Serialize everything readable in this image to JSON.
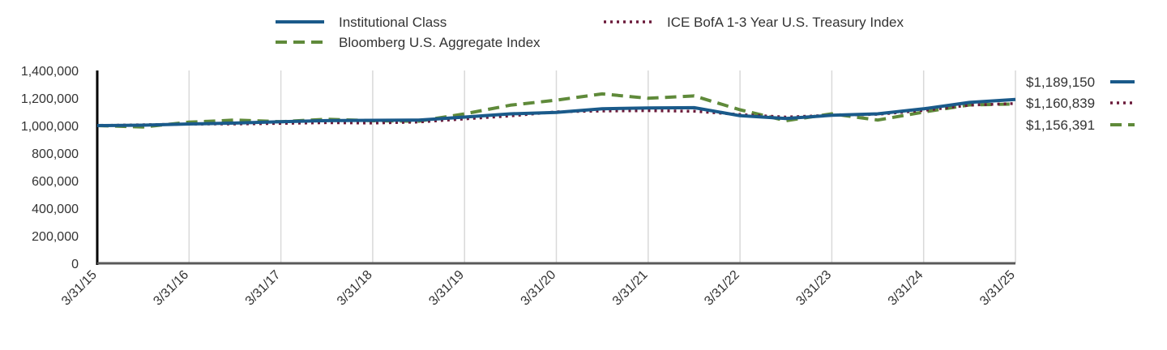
{
  "chart_data": {
    "type": "line",
    "title": "",
    "xlabel": "",
    "ylabel": "",
    "ylim": [
      0,
      1400000
    ],
    "y_ticks": [
      "1,400,000",
      "1,200,000",
      "1,000,000",
      "800,000",
      "600,000",
      "400,000",
      "200,000",
      "0"
    ],
    "x_tick_labels": [
      "3/31/15",
      "3/31/16",
      "3/31/17",
      "3/31/18",
      "3/31/19",
      "3/31/20",
      "3/31/21",
      "3/31/22",
      "3/31/23",
      "3/31/24",
      "3/31/25"
    ],
    "grid": "vertical",
    "legend_position": "top",
    "x": [
      "3/31/15",
      "9/30/15",
      "3/31/16",
      "9/30/16",
      "3/31/17",
      "9/30/17",
      "3/31/18",
      "9/30/18",
      "3/31/19",
      "9/30/19",
      "3/31/20",
      "9/30/20",
      "3/31/21",
      "9/30/21",
      "3/31/22",
      "9/30/22",
      "3/31/23",
      "9/30/23",
      "3/31/24",
      "9/30/24",
      "3/31/25"
    ],
    "series": [
      {
        "name": "Institutional Class",
        "color": "#1a5a8a",
        "style": "solid",
        "end_label": "$1,189,150",
        "values": [
          1000000,
          1003000,
          1012000,
          1018000,
          1028000,
          1036000,
          1038000,
          1040000,
          1062000,
          1085000,
          1096000,
          1122000,
          1128000,
          1130000,
          1072000,
          1052000,
          1075000,
          1085000,
          1122000,
          1168000,
          1189150
        ]
      },
      {
        "name": "ICE BofA 1-3 Year U.S. Treasury Index",
        "color": "#6b1a3a",
        "style": "dotted",
        "end_label": "$1,160,839",
        "values": [
          1000000,
          1006000,
          1011000,
          1012000,
          1016000,
          1021000,
          1018000,
          1026000,
          1048000,
          1070000,
          1100000,
          1106000,
          1108000,
          1104000,
          1080000,
          1062000,
          1075000,
          1082000,
          1110000,
          1148000,
          1160839
        ]
      },
      {
        "name": "Bloomberg U.S. Aggregate Index",
        "color": "#5f8a3a",
        "style": "dashed",
        "end_label": "$1,156,391",
        "values": [
          1000000,
          990000,
          1025000,
          1040000,
          1028000,
          1046000,
          1035000,
          1032000,
          1085000,
          1148000,
          1185000,
          1230000,
          1198000,
          1215000,
          1115000,
          1035000,
          1085000,
          1040000,
          1098000,
          1150000,
          1156391
        ]
      }
    ]
  }
}
